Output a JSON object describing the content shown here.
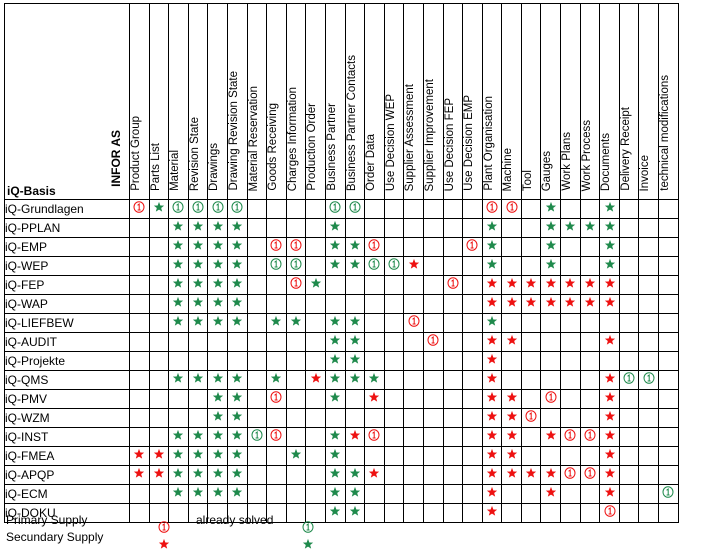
{
  "header": {
    "company": "INFOR AS",
    "section": "iQ-Basis"
  },
  "columns": [
    "Product Group",
    "Parts List",
    "Material",
    "Revision State",
    "Drawings",
    "Drawing Revision State",
    "Material Reservation",
    "Goods Receiving",
    "Charges Information",
    "Production Order",
    "Business Partner",
    "Business Partner Contacts",
    "Order Data",
    "Use Decision WEP",
    "Supplier Assessment",
    "Supplier Improvement",
    "Use Decision FEP",
    "Use Decision EMP",
    "Plant Organisation",
    "Machine",
    "Tool",
    "Gauges",
    "Work Plans",
    "Work Process",
    "Documents",
    "Delivery Receipt",
    "Invoice",
    "technical modifications"
  ],
  "rows": [
    {
      "name": "iQ-Grundlagen",
      "cells": [
        "P",
        "s",
        "a",
        "a",
        "a",
        "a",
        "",
        "",
        "",
        "",
        "a",
        "a",
        "",
        "",
        "",
        "",
        "",
        "",
        "P",
        "P",
        "",
        "s",
        "",
        "",
        "s",
        "",
        "",
        ""
      ]
    },
    {
      "name": "iQ-PPLAN",
      "cells": [
        "",
        "",
        "s",
        "s",
        "s",
        "s",
        "",
        "",
        "",
        "",
        "s",
        "",
        "",
        "",
        "",
        "",
        "",
        "",
        "s",
        "",
        "",
        "s",
        "s",
        "s",
        "s",
        "",
        "",
        ""
      ]
    },
    {
      "name": "iQ-EMP",
      "cells": [
        "",
        "",
        "s",
        "s",
        "s",
        "s",
        "",
        "P",
        "P",
        "",
        "s",
        "s",
        "P",
        "",
        "",
        "",
        "",
        "P",
        "s",
        "",
        "",
        "s",
        "",
        "",
        "s",
        "",
        "",
        ""
      ]
    },
    {
      "name": "iQ-WEP",
      "cells": [
        "",
        "",
        "s",
        "s",
        "s",
        "s",
        "",
        "a",
        "a",
        "",
        "s",
        "s",
        "a",
        "a",
        "S",
        "",
        "",
        "",
        "s",
        "",
        "",
        "s",
        "",
        "",
        "s",
        "",
        "",
        ""
      ]
    },
    {
      "name": "iQ-FEP",
      "cells": [
        "",
        "",
        "s",
        "s",
        "s",
        "s",
        "",
        "",
        "P",
        "s",
        "",
        "",
        "",
        "",
        "",
        "",
        "P",
        "",
        "S",
        "S",
        "S",
        "S",
        "S",
        "S",
        "S",
        "",
        "",
        ""
      ]
    },
    {
      "name": "iQ-WAP",
      "cells": [
        "",
        "",
        "s",
        "s",
        "s",
        "s",
        "",
        "",
        "",
        "",
        "",
        "",
        "",
        "",
        "",
        "",
        "",
        "",
        "S",
        "S",
        "S",
        "S",
        "S",
        "S",
        "S",
        "",
        "",
        ""
      ]
    },
    {
      "name": "iQ-LIEFBEW",
      "cells": [
        "",
        "",
        "s",
        "s",
        "s",
        "s",
        "",
        "s",
        "s",
        "",
        "s",
        "s",
        "",
        "",
        "P",
        "",
        "",
        "",
        "s",
        "",
        "",
        "",
        "",
        "",
        "",
        "",
        "",
        ""
      ]
    },
    {
      "name": "iQ-AUDIT",
      "cells": [
        "",
        "",
        "",
        "",
        "",
        "",
        "",
        "",
        "",
        "",
        "s",
        "s",
        "",
        "",
        "",
        "P",
        "",
        "",
        "S",
        "S",
        "",
        "",
        "",
        "",
        "S",
        "",
        "",
        ""
      ]
    },
    {
      "name": "iQ-Projekte",
      "cells": [
        "",
        "",
        "",
        "",
        "",
        "",
        "",
        "",
        "",
        "",
        "s",
        "s",
        "",
        "",
        "",
        "",
        "",
        "",
        "S",
        "",
        "",
        "",
        "",
        "",
        "",
        "",
        "",
        ""
      ]
    },
    {
      "name": "iQ-QMS",
      "cells": [
        "",
        "",
        "s",
        "s",
        "s",
        "s",
        "",
        "s",
        "",
        "S",
        "s",
        "s",
        "s",
        "",
        "",
        "",
        "",
        "",
        "S",
        "",
        "",
        "",
        "",
        "",
        "S",
        "a",
        "a",
        ""
      ]
    },
    {
      "name": "iQ-PMV",
      "cells": [
        "",
        "",
        "",
        "",
        "s",
        "s",
        "",
        "P",
        "",
        "",
        "s",
        "",
        "S",
        "",
        "",
        "",
        "",
        "",
        "S",
        "S",
        "",
        "P",
        "",
        "",
        "S",
        "",
        "",
        ""
      ]
    },
    {
      "name": "iQ-WZM",
      "cells": [
        "",
        "",
        "",
        "",
        "s",
        "s",
        "",
        "",
        "",
        "",
        "",
        "",
        "",
        "",
        "",
        "",
        "",
        "",
        "S",
        "S",
        "P",
        "",
        "",
        "",
        "S",
        "",
        "",
        ""
      ]
    },
    {
      "name": "iQ-INST",
      "cells": [
        "",
        "",
        "s",
        "s",
        "s",
        "s",
        "a",
        "P",
        "",
        "",
        "s",
        "S",
        "P",
        "",
        "",
        "",
        "",
        "",
        "S",
        "S",
        "",
        "S",
        "P",
        "P",
        "S",
        "",
        "",
        ""
      ]
    },
    {
      "name": "iQ-FMEA",
      "cells": [
        "S",
        "S",
        "s",
        "s",
        "s",
        "s",
        "",
        "",
        "s",
        "",
        "s",
        "",
        "",
        "",
        "",
        "",
        "",
        "",
        "S",
        "S",
        "",
        "",
        "",
        "",
        "S",
        "",
        "",
        ""
      ]
    },
    {
      "name": "iQ-APQP",
      "cells": [
        "S",
        "S",
        "s",
        "s",
        "s",
        "s",
        "",
        "",
        "",
        "",
        "s",
        "s",
        "S",
        "",
        "",
        "",
        "",
        "",
        "S",
        "S",
        "S",
        "S",
        "P",
        "P",
        "S",
        "",
        "",
        ""
      ]
    },
    {
      "name": "iQ-ECM",
      "cells": [
        "",
        "",
        "s",
        "s",
        "s",
        "s",
        "",
        "",
        "",
        "",
        "s",
        "s",
        "",
        "",
        "",
        "",
        "",
        "",
        "S",
        "",
        "",
        "S",
        "",
        "",
        "S",
        "",
        "",
        "a"
      ]
    },
    {
      "name": "iQ-DOKU",
      "cells": [
        "",
        "",
        "",
        "",
        "",
        "",
        "",
        "",
        "",
        "",
        "s",
        "s",
        "",
        "",
        "",
        "",
        "",
        "",
        "S",
        "",
        "",
        "",
        "",
        "",
        "P",
        "",
        "",
        ""
      ]
    }
  ],
  "legend": {
    "primary_supply": "Primary Supply",
    "secundary_supply": "Secundary Supply",
    "already_solved": "already solved"
  },
  "colors": {
    "red": "#ee1111",
    "green": "#1f8a4c"
  }
}
